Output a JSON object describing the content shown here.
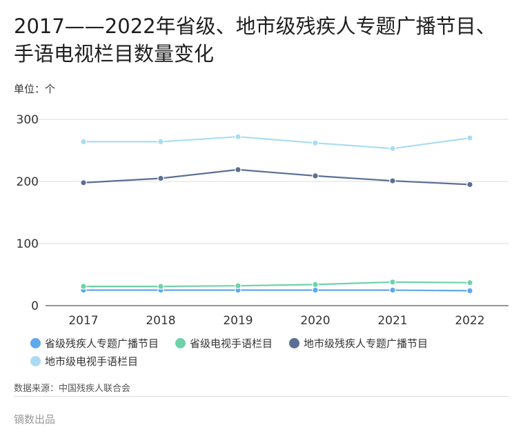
{
  "header": {
    "title": "2017——2022年省级、地市级残疾人专题广播节目、手语电视栏目数量变化",
    "unit": "单位：个"
  },
  "chart_data": {
    "type": "line",
    "x": [
      "2017",
      "2018",
      "2019",
      "2020",
      "2021",
      "2022"
    ],
    "ylim": [
      0,
      300
    ],
    "yticks": [
      0,
      100,
      200,
      300
    ],
    "grid": true,
    "legend_position": "bottom",
    "series": [
      {
        "name": "省级残疾人专题广播节目",
        "color": "#5ea8ee",
        "values": [
          25,
          25,
          25,
          25,
          25,
          24
        ]
      },
      {
        "name": "省级电视手语栏目",
        "color": "#6dd3a8",
        "values": [
          31,
          31,
          32,
          34,
          38,
          37
        ]
      },
      {
        "name": "地市级残疾人专题广播节目",
        "color": "#5a6f93",
        "values": [
          198,
          205,
          219,
          209,
          201,
          195
        ]
      },
      {
        "name": "地市级电视手语栏目",
        "color": "#a9dcf3",
        "values": [
          264,
          264,
          272,
          262,
          253,
          270
        ]
      }
    ]
  },
  "footer": {
    "source": "数据来源：中国残疾人联合会",
    "brand": "镝数出品"
  }
}
